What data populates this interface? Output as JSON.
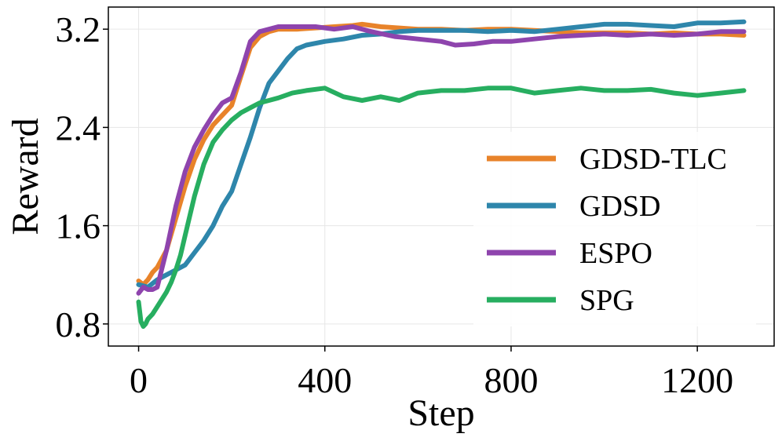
{
  "chart_data": {
    "type": "line",
    "title": "",
    "xlabel": "Step",
    "ylabel": "Reward",
    "xlim": [
      -65,
      1365
    ],
    "ylim": [
      0.62,
      3.38
    ],
    "xticks": [
      0,
      400,
      800,
      1200
    ],
    "yticks": [
      0.8,
      1.6,
      2.4,
      3.2
    ],
    "xtick_labels": [
      "0",
      "400",
      "800",
      "1200"
    ],
    "ytick_labels": [
      "0.8",
      "1.6",
      "2.4",
      "3.2"
    ],
    "grid": true,
    "legend_position": "lower-right",
    "series": [
      {
        "name": "GDSD-TLC",
        "color": "#E8832A",
        "x": [
          0,
          10,
          20,
          30,
          40,
          60,
          80,
          100,
          120,
          140,
          160,
          180,
          200,
          220,
          240,
          260,
          280,
          300,
          340,
          380,
          420,
          460,
          480,
          520,
          560,
          600,
          650,
          700,
          750,
          800,
          850,
          900,
          950,
          1000,
          1050,
          1100,
          1150,
          1200,
          1250,
          1300
        ],
        "y": [
          1.15,
          1.12,
          1.16,
          1.22,
          1.26,
          1.4,
          1.66,
          1.92,
          2.14,
          2.3,
          2.42,
          2.5,
          2.58,
          2.82,
          3.05,
          3.14,
          3.18,
          3.2,
          3.2,
          3.21,
          3.22,
          3.23,
          3.24,
          3.22,
          3.21,
          3.2,
          3.2,
          3.19,
          3.2,
          3.2,
          3.19,
          3.18,
          3.17,
          3.17,
          3.17,
          3.16,
          3.17,
          3.16,
          3.16,
          3.15
        ]
      },
      {
        "name": "GDSD",
        "color": "#2E86AB",
        "x": [
          0,
          20,
          40,
          60,
          80,
          100,
          120,
          140,
          160,
          180,
          200,
          220,
          240,
          260,
          280,
          300,
          320,
          340,
          360,
          400,
          440,
          480,
          520,
          560,
          600,
          650,
          700,
          750,
          800,
          850,
          900,
          950,
          1000,
          1050,
          1100,
          1150,
          1200,
          1250,
          1300
        ],
        "y": [
          1.12,
          1.1,
          1.16,
          1.2,
          1.24,
          1.28,
          1.38,
          1.48,
          1.6,
          1.76,
          1.88,
          2.1,
          2.32,
          2.56,
          2.76,
          2.86,
          2.96,
          3.04,
          3.07,
          3.1,
          3.12,
          3.15,
          3.16,
          3.18,
          3.19,
          3.19,
          3.19,
          3.18,
          3.19,
          3.18,
          3.2,
          3.22,
          3.24,
          3.24,
          3.23,
          3.22,
          3.25,
          3.25,
          3.26
        ]
      },
      {
        "name": "ESPO",
        "color": "#8E44AD",
        "x": [
          0,
          10,
          20,
          30,
          40,
          60,
          80,
          100,
          120,
          140,
          160,
          180,
          200,
          220,
          240,
          260,
          280,
          300,
          340,
          380,
          420,
          460,
          500,
          550,
          600,
          650,
          680,
          720,
          760,
          800,
          850,
          900,
          950,
          1000,
          1050,
          1100,
          1150,
          1200,
          1250,
          1300
        ],
        "y": [
          1.05,
          1.1,
          1.08,
          1.08,
          1.1,
          1.4,
          1.76,
          2.04,
          2.24,
          2.38,
          2.5,
          2.6,
          2.64,
          2.85,
          3.1,
          3.18,
          3.2,
          3.22,
          3.22,
          3.22,
          3.2,
          3.22,
          3.18,
          3.14,
          3.12,
          3.1,
          3.07,
          3.08,
          3.1,
          3.1,
          3.12,
          3.14,
          3.15,
          3.16,
          3.15,
          3.16,
          3.15,
          3.16,
          3.18,
          3.18
        ]
      },
      {
        "name": "SPG",
        "color": "#27AE60",
        "x": [
          0,
          5,
          10,
          15,
          20,
          30,
          40,
          50,
          60,
          70,
          80,
          90,
          100,
          120,
          140,
          160,
          180,
          200,
          220,
          240,
          260,
          280,
          300,
          330,
          360,
          400,
          440,
          480,
          520,
          560,
          600,
          650,
          700,
          750,
          800,
          850,
          900,
          950,
          1000,
          1050,
          1100,
          1150,
          1200,
          1250,
          1300
        ],
        "y": [
          0.98,
          0.82,
          0.78,
          0.8,
          0.84,
          0.88,
          0.94,
          1.0,
          1.06,
          1.14,
          1.24,
          1.36,
          1.52,
          1.84,
          2.1,
          2.28,
          2.38,
          2.46,
          2.52,
          2.56,
          2.6,
          2.62,
          2.64,
          2.68,
          2.7,
          2.72,
          2.65,
          2.62,
          2.65,
          2.62,
          2.68,
          2.7,
          2.7,
          2.72,
          2.72,
          2.68,
          2.7,
          2.72,
          2.7,
          2.7,
          2.71,
          2.68,
          2.66,
          2.68,
          2.7
        ]
      }
    ]
  }
}
